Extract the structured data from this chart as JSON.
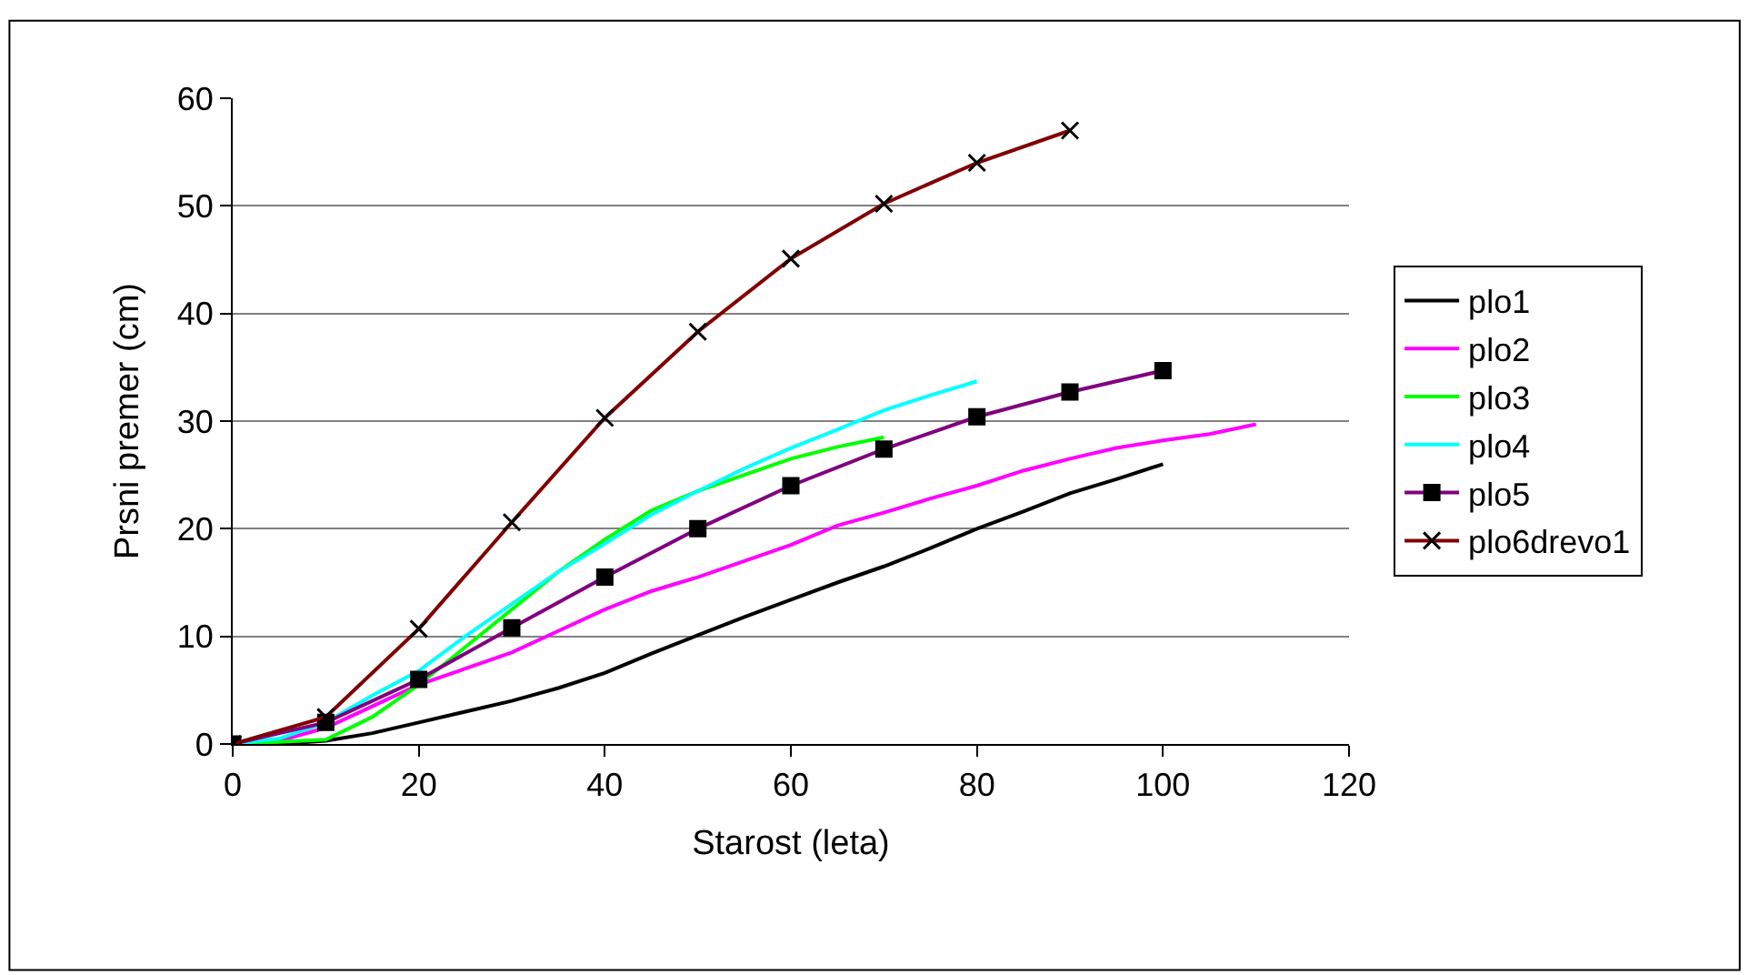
{
  "chart_data": {
    "type": "line",
    "xlabel": "Starost (leta)",
    "ylabel": "Prsni premer (cm)",
    "xlim": [
      0,
      120
    ],
    "xticks": [
      0,
      20,
      40,
      60,
      80,
      100,
      120
    ],
    "ylim": [
      0,
      60
    ],
    "yticks": [
      0,
      10,
      20,
      30,
      40,
      50,
      60
    ],
    "grid": "y",
    "legend": "right",
    "series": [
      {
        "name": "plo1",
        "color": "#000000",
        "marker": "none",
        "x": [
          0,
          5,
          10,
          15,
          20,
          25,
          30,
          35,
          40,
          45,
          50,
          55,
          60,
          65,
          70,
          75,
          80,
          85,
          90,
          95,
          100
        ],
        "values": [
          0,
          0,
          0.3,
          1,
          2,
          3,
          4,
          5.2,
          6.6,
          8.4,
          10.1,
          11.8,
          13.4,
          15,
          16.5,
          18.2,
          20,
          21.6,
          23.3,
          24.6,
          26
        ]
      },
      {
        "name": "plo2",
        "color": "#ff00ff",
        "marker": "none",
        "x": [
          0,
          5,
          10,
          15,
          20,
          25,
          30,
          35,
          40,
          45,
          50,
          55,
          60,
          65,
          70,
          75,
          80,
          85,
          90,
          95,
          100,
          105,
          110
        ],
        "values": [
          0,
          0.3,
          1.5,
          3.5,
          5.5,
          7,
          8.5,
          10.5,
          12.5,
          14.2,
          15.5,
          17,
          18.5,
          20.3,
          21.5,
          22.8,
          24,
          25.4,
          26.5,
          27.5,
          28.2,
          28.8,
          29.7
        ]
      },
      {
        "name": "plo3",
        "color": "#00ff00",
        "marker": "none",
        "x": [
          0,
          5,
          10,
          15,
          20,
          25,
          30,
          35,
          40,
          45,
          50,
          55,
          60,
          65,
          70
        ],
        "values": [
          0,
          0.2,
          0.4,
          2.5,
          5.5,
          9,
          12.5,
          16,
          19,
          21.7,
          23.5,
          25,
          26.5,
          27.6,
          28.5
        ]
      },
      {
        "name": "plo4",
        "color": "#00ffff",
        "marker": "none",
        "x": [
          0,
          5,
          10,
          15,
          20,
          25,
          30,
          35,
          40,
          45,
          50,
          55,
          60,
          65,
          70,
          75,
          80
        ],
        "values": [
          0,
          0.5,
          2,
          4.5,
          6.8,
          10,
          13,
          16,
          18.6,
          21.3,
          23.5,
          25.6,
          27.5,
          29.2,
          31,
          32.4,
          33.7
        ]
      },
      {
        "name": "plo5",
        "color": "#800080",
        "marker": "square",
        "x": [
          0,
          10,
          20,
          30,
          40,
          50,
          60,
          70,
          80,
          90,
          100
        ],
        "values": [
          0,
          2,
          6,
          10.8,
          15.5,
          20,
          24,
          27.4,
          30.4,
          32.7,
          34.7
        ]
      },
      {
        "name": "plo6drevo1",
        "color": "#800000",
        "marker": "cross",
        "x": [
          0,
          10,
          20,
          30,
          40,
          50,
          60,
          70,
          80,
          90
        ],
        "values": [
          0,
          2.5,
          10.7,
          20.6,
          30.3,
          38.3,
          45.1,
          50.2,
          54,
          57
        ]
      }
    ]
  }
}
